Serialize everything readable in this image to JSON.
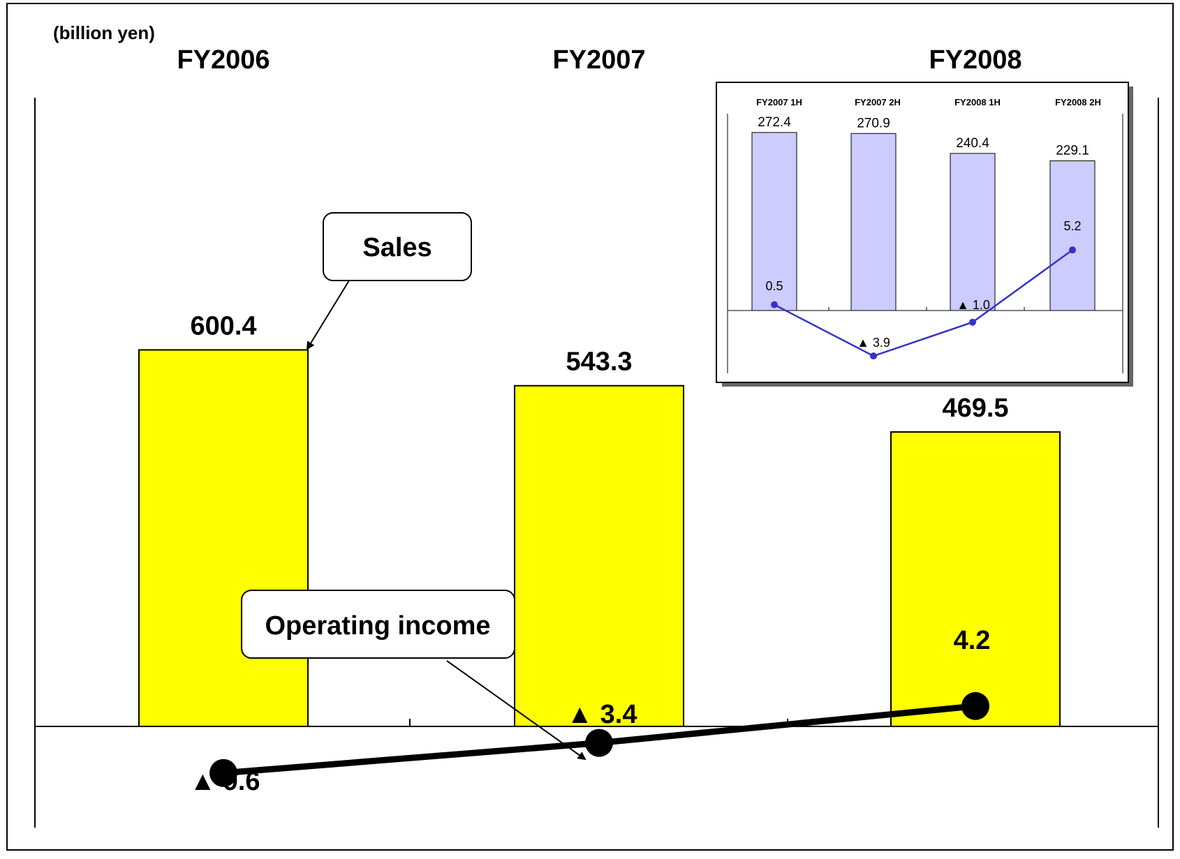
{
  "unit_label": "(billion yen)",
  "chart_data": [
    {
      "type": "bar",
      "categories": [
        "FY2006",
        "FY2007",
        "FY2008"
      ],
      "series": [
        {
          "name": "Sales",
          "values": [
            600.4,
            543.3,
            469.5
          ],
          "labels": [
            "600.4",
            "543.3",
            "469.5"
          ]
        },
        {
          "name": "Operating income",
          "values": [
            -9.6,
            -3.4,
            4.2
          ],
          "labels": [
            "▲ 9.6",
            "▲ 3.4",
            "4.2"
          ]
        }
      ],
      "callouts": [
        "Sales",
        "Operating income"
      ],
      "bar_color": "#ffff00",
      "line_color": "#000000"
    },
    {
      "type": "bar",
      "categories": [
        "FY2007 1H",
        "FY2007 2H",
        "FY2008 1H",
        "FY2008 2H"
      ],
      "series": [
        {
          "name": "Sales",
          "values": [
            272.4,
            270.9,
            240.4,
            229.1
          ],
          "labels": [
            "272.4",
            "270.9",
            "240.4",
            "229.1"
          ]
        },
        {
          "name": "Operating income",
          "values": [
            0.5,
            -3.9,
            -1.0,
            5.2
          ],
          "labels": [
            "0.5",
            "▲ 3.9",
            "▲ 1.0",
            "5.2"
          ]
        }
      ],
      "bar_color": "#ccccff",
      "line_color": "#3333cc"
    }
  ]
}
